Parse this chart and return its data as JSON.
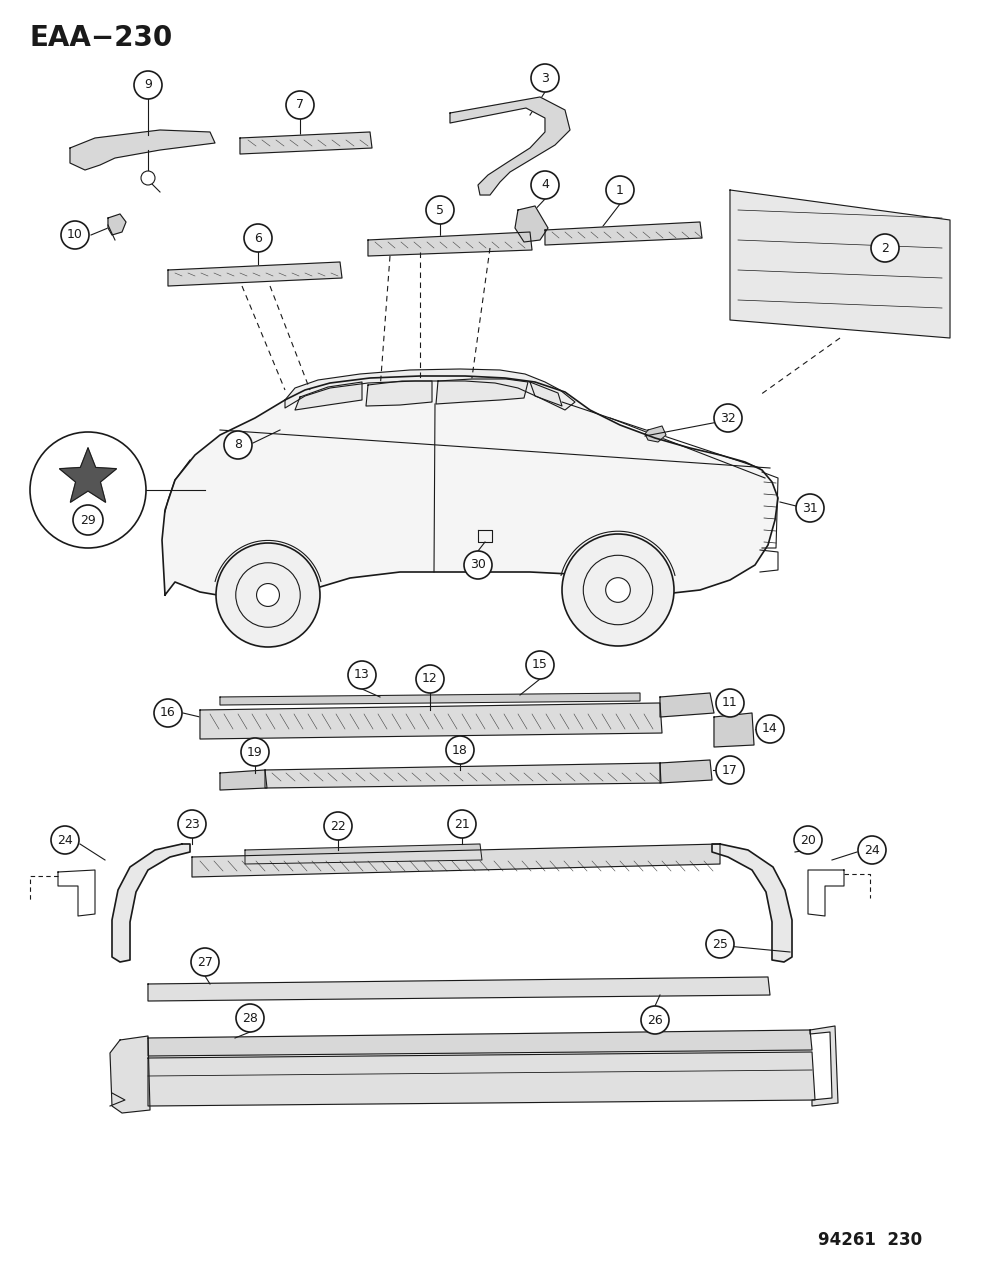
{
  "title": "EAA−230",
  "watermark": "94261  230",
  "bg": "#ffffff",
  "lc": "#1a1a1a",
  "fig_w": 9.91,
  "fig_h": 12.75,
  "dpi": 100
}
